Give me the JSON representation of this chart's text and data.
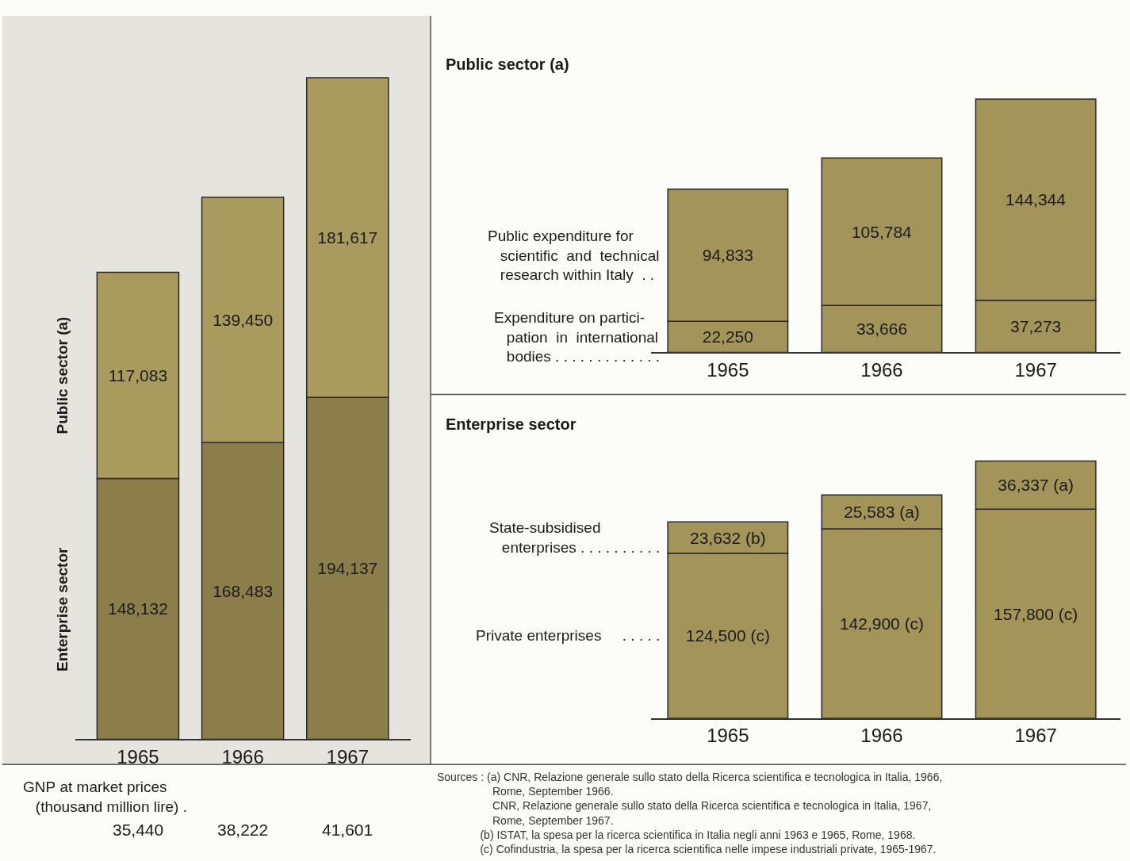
{
  "chart_data": [
    {
      "type": "bar",
      "stacked": true,
      "categories": [
        "1965",
        "1966",
        "1967"
      ],
      "series": [
        {
          "name": "Enterprise sector",
          "color": "#8c7e4a",
          "values": [
            148132,
            168483,
            194137
          ],
          "value_labels": [
            "148,132",
            "168,483",
            "194,137"
          ]
        },
        {
          "name": "Public sector (a)",
          "color": "#a99b5e",
          "values": [
            117083,
            139450,
            181617
          ],
          "value_labels": [
            "117,083",
            "139,450",
            "181,617"
          ]
        }
      ],
      "annotations": [
        "GNP at market prices\n   (thousand million lire) .",
        "35,440",
        "38,222",
        "41,601"
      ]
    },
    {
      "type": "bar",
      "stacked": true,
      "title": "Public sector (a)",
      "categories": [
        "1965",
        "1966",
        "1967"
      ],
      "series": [
        {
          "name": "Expenditure on partici-\n   pation  in  international\n   bodies . . . . . . . . . . . . .",
          "color": "#a3955a",
          "values": [
            22250,
            33666,
            37273
          ],
          "value_labels": [
            "22,250",
            "33,666",
            "37,273"
          ]
        },
        {
          "name": "Public expenditure for\n   scientific  and  technical\n   research within Italy  . .",
          "color": "#a3955a",
          "values": [
            94833,
            105784,
            144344
          ],
          "value_labels": [
            "94,833",
            "105,784",
            "144,344"
          ]
        }
      ]
    },
    {
      "type": "bar",
      "stacked": true,
      "title": "Enterprise sector",
      "categories": [
        "1965",
        "1966",
        "1967"
      ],
      "series": [
        {
          "name": "Private enterprises     . . . . .",
          "color": "#a3955a",
          "values": [
            124500,
            142900,
            157800
          ],
          "value_labels": [
            "124,500 (c)",
            "142,900 (c)",
            "157,800 (c)"
          ]
        },
        {
          "name": "State-subsidised\n   enterprises . . . . . . . . . .",
          "color": "#a3955a",
          "values": [
            23632,
            25583,
            36337
          ],
          "value_labels": [
            "23,632 (b)",
            "25,583 (a)",
            "36,337 (a)"
          ]
        }
      ],
      "annotations": [
        "Sources : (a) CNR, Relazione generale sullo stato della Ricerca scientifica e tecnologica in Italia, 1966,\n                  Rome, September 1966.\n                  CNR, Relazione generale sullo stato della Ricerca scientifica e tecnologica in Italia, 1967,\n                  Rome, September 1967.\n              (b) ISTAT, la spesa per la ricerca scientifica in Italia negli anni 1963 e 1965, Rome, 1968.\n              (c) Cofindustria, la spesa per la ricerca scientifica nelle impese industriali private, 1965-1967."
      ]
    }
  ]
}
